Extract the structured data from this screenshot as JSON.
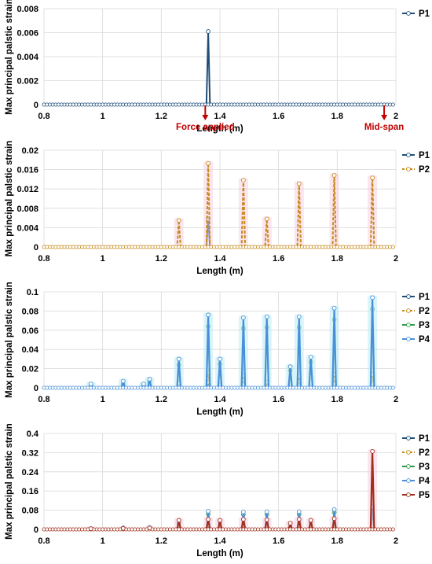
{
  "colors": {
    "P1": "#1f4e79",
    "P2": "#c58a1a",
    "P3": "#2e9a4a",
    "P4": "#4a90d9",
    "P5": "#a0301c",
    "annotation": "#c00000",
    "grid": "#d9d9d9",
    "halo_blue": "#b9ecf5",
    "halo_pink": "#f7cfe0"
  },
  "chart_data": [
    {
      "type": "line",
      "xlabel": "Length (m)",
      "ylabel": "Max principal palstic strain",
      "xlim": [
        0.8,
        2
      ],
      "ylim": [
        0,
        0.008
      ],
      "xticks": [
        "0.8",
        "1",
        "1.2",
        "1.4",
        "1.6",
        "1.8",
        "2"
      ],
      "yticks": [
        "0",
        "0.002",
        "0.004",
        "0.006",
        "0.008"
      ],
      "grid": true,
      "legend_position": "top-right",
      "series": [
        {
          "name": "P1",
          "peaks": [
            [
              1.36,
              0.0061
            ]
          ]
        }
      ],
      "annotations": [
        {
          "text": "Force applied",
          "x": 1.35
        },
        {
          "text": "Mid-span",
          "x": 1.96
        }
      ]
    },
    {
      "type": "line",
      "xlabel": "Length (m)",
      "ylabel": "Max principal palstic strain",
      "xlim": [
        0.8,
        2
      ],
      "ylim": [
        0,
        0.02
      ],
      "xticks": [
        "0.8",
        "1",
        "1.2",
        "1.4",
        "1.6",
        "1.8",
        "2"
      ],
      "yticks": [
        "0",
        "0.004",
        "0.008",
        "0.012",
        "0.016",
        "0.02"
      ],
      "grid": true,
      "legend_position": "top-right",
      "series": [
        {
          "name": "P1",
          "peaks": [
            [
              1.36,
              0.0058
            ]
          ]
        },
        {
          "name": "P2",
          "peaks": [
            [
              1.26,
              0.0055
            ],
            [
              1.36,
              0.0173
            ],
            [
              1.48,
              0.0138
            ],
            [
              1.56,
              0.0058
            ],
            [
              1.67,
              0.0131
            ],
            [
              1.79,
              0.0148
            ],
            [
              1.92,
              0.0143
            ]
          ]
        }
      ]
    },
    {
      "type": "line",
      "xlabel": "Length (m)",
      "ylabel": "Max principal palstic strain",
      "xlim": [
        0.8,
        2
      ],
      "ylim": [
        0,
        0.1
      ],
      "xticks": [
        "0.8",
        "1",
        "1.2",
        "1.4",
        "1.6",
        "1.8",
        "2"
      ],
      "yticks": [
        "0",
        "0.02",
        "0.04",
        "0.06",
        "0.08",
        "0.1"
      ],
      "grid": true,
      "legend_position": "top-right",
      "series": [
        {
          "name": "P1",
          "peaks": [
            [
              1.36,
              0.006
            ]
          ]
        },
        {
          "name": "P2",
          "peaks": [
            [
              1.26,
              0.005
            ],
            [
              1.36,
              0.016
            ],
            [
              1.48,
              0.013
            ],
            [
              1.56,
              0.006
            ],
            [
              1.67,
              0.012
            ],
            [
              1.79,
              0.014
            ],
            [
              1.92,
              0.014
            ]
          ]
        },
        {
          "name": "P3",
          "peaks": [
            [
              0.96,
              0.003
            ],
            [
              1.07,
              0.004
            ],
            [
              1.14,
              0.003
            ],
            [
              1.16,
              0.007
            ],
            [
              1.26,
              0.024
            ],
            [
              1.36,
              0.064
            ],
            [
              1.4,
              0.025
            ],
            [
              1.48,
              0.062
            ],
            [
              1.56,
              0.063
            ],
            [
              1.64,
              0.018
            ],
            [
              1.67,
              0.063
            ],
            [
              1.71,
              0.027
            ],
            [
              1.79,
              0.071
            ],
            [
              1.92,
              0.082
            ]
          ]
        },
        {
          "name": "P4",
          "peaks": [
            [
              0.96,
              0.004
            ],
            [
              1.07,
              0.007
            ],
            [
              1.14,
              0.004
            ],
            [
              1.16,
              0.009
            ],
            [
              1.26,
              0.03
            ],
            [
              1.36,
              0.076
            ],
            [
              1.4,
              0.03
            ],
            [
              1.48,
              0.073
            ],
            [
              1.56,
              0.074
            ],
            [
              1.64,
              0.022
            ],
            [
              1.67,
              0.074
            ],
            [
              1.71,
              0.032
            ],
            [
              1.79,
              0.083
            ],
            [
              1.92,
              0.094
            ]
          ]
        }
      ]
    },
    {
      "type": "line",
      "xlabel": "Length (m)",
      "ylabel": "Max principal palstic strain",
      "xlim": [
        0.8,
        2
      ],
      "ylim": [
        0,
        0.4
      ],
      "xticks": [
        "0.8",
        "1",
        "1.2",
        "1.4",
        "1.6",
        "1.8",
        "2"
      ],
      "yticks": [
        "0",
        "0.08",
        "0.16",
        "0.24",
        "0.32",
        "0.4"
      ],
      "grid": true,
      "legend_position": "top-right",
      "series": [
        {
          "name": "P1",
          "peaks": [
            [
              1.36,
              0.006
            ]
          ]
        },
        {
          "name": "P2",
          "peaks": [
            [
              1.36,
              0.017
            ],
            [
              1.48,
              0.014
            ],
            [
              1.67,
              0.013
            ],
            [
              1.79,
              0.015
            ],
            [
              1.92,
              0.014
            ]
          ]
        },
        {
          "name": "P3",
          "peaks": [
            [
              1.26,
              0.025
            ],
            [
              1.36,
              0.064
            ],
            [
              1.48,
              0.062
            ],
            [
              1.56,
              0.063
            ],
            [
              1.67,
              0.063
            ],
            [
              1.79,
              0.071
            ],
            [
              1.92,
              0.082
            ]
          ]
        },
        {
          "name": "P4",
          "peaks": [
            [
              0.96,
              0.004
            ],
            [
              1.07,
              0.007
            ],
            [
              1.16,
              0.009
            ],
            [
              1.26,
              0.03
            ],
            [
              1.36,
              0.076
            ],
            [
              1.4,
              0.03
            ],
            [
              1.48,
              0.073
            ],
            [
              1.56,
              0.074
            ],
            [
              1.64,
              0.022
            ],
            [
              1.67,
              0.074
            ],
            [
              1.71,
              0.032
            ],
            [
              1.79,
              0.083
            ],
            [
              1.92,
              0.094
            ]
          ]
        },
        {
          "name": "P5",
          "peaks": [
            [
              0.96,
              0.003
            ],
            [
              1.07,
              0.004
            ],
            [
              1.16,
              0.006
            ],
            [
              1.26,
              0.038
            ],
            [
              1.36,
              0.042
            ],
            [
              1.4,
              0.038
            ],
            [
              1.48,
              0.042
            ],
            [
              1.56,
              0.04
            ],
            [
              1.64,
              0.026
            ],
            [
              1.67,
              0.042
            ],
            [
              1.71,
              0.038
            ],
            [
              1.79,
              0.045
            ],
            [
              1.92,
              0.325
            ]
          ]
        }
      ]
    }
  ]
}
